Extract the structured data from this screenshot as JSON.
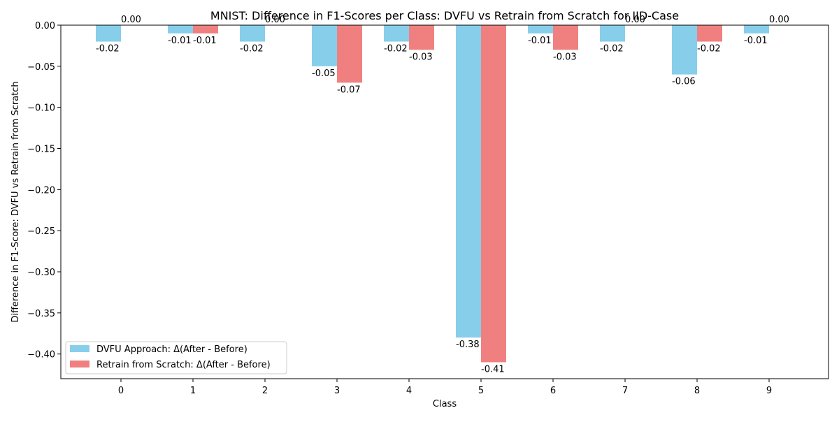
{
  "chart_data": {
    "type": "bar",
    "title": "MNIST: Difference in F1-Scores per Class: DVFU vs Retrain from Scratch for IID-Case",
    "xlabel": "Class",
    "ylabel": "Difference in F1-Score: DVFU vs Retrain from Scratch",
    "categories": [
      "0",
      "1",
      "2",
      "3",
      "4",
      "5",
      "6",
      "7",
      "8",
      "9"
    ],
    "series": [
      {
        "name": "DVFU Approach: Δ(After - Before)",
        "color": "#87CEEB",
        "values": [
          -0.02,
          -0.01,
          -0.02,
          -0.05,
          -0.02,
          -0.38,
          -0.01,
          -0.02,
          -0.06,
          -0.01
        ],
        "labels": [
          "-0.02",
          "-0.01",
          "-0.02",
          "-0.05",
          "-0.02",
          "-0.38",
          "-0.01",
          "-0.02",
          "-0.06",
          "-0.01"
        ]
      },
      {
        "name": "Retrain from Scratch: Δ(After - Before)",
        "color": "#F08080",
        "values": [
          0.0,
          -0.01,
          0.0,
          -0.07,
          -0.03,
          -0.41,
          -0.03,
          0.0,
          -0.02,
          0.0
        ],
        "labels": [
          "0.00",
          "-0.01",
          "0.00",
          "-0.07",
          "-0.03",
          "-0.41",
          "-0.03",
          "0.00",
          "-0.02",
          "0.00"
        ]
      }
    ],
    "ylim": [
      -0.43,
      0.0
    ],
    "yticks": [
      "0.00",
      "-0.05",
      "-0.10",
      "-0.15",
      "-0.20",
      "-0.25",
      "-0.30",
      "-0.35",
      "-0.40"
    ],
    "grid": false,
    "legend_position": "lower-left"
  }
}
